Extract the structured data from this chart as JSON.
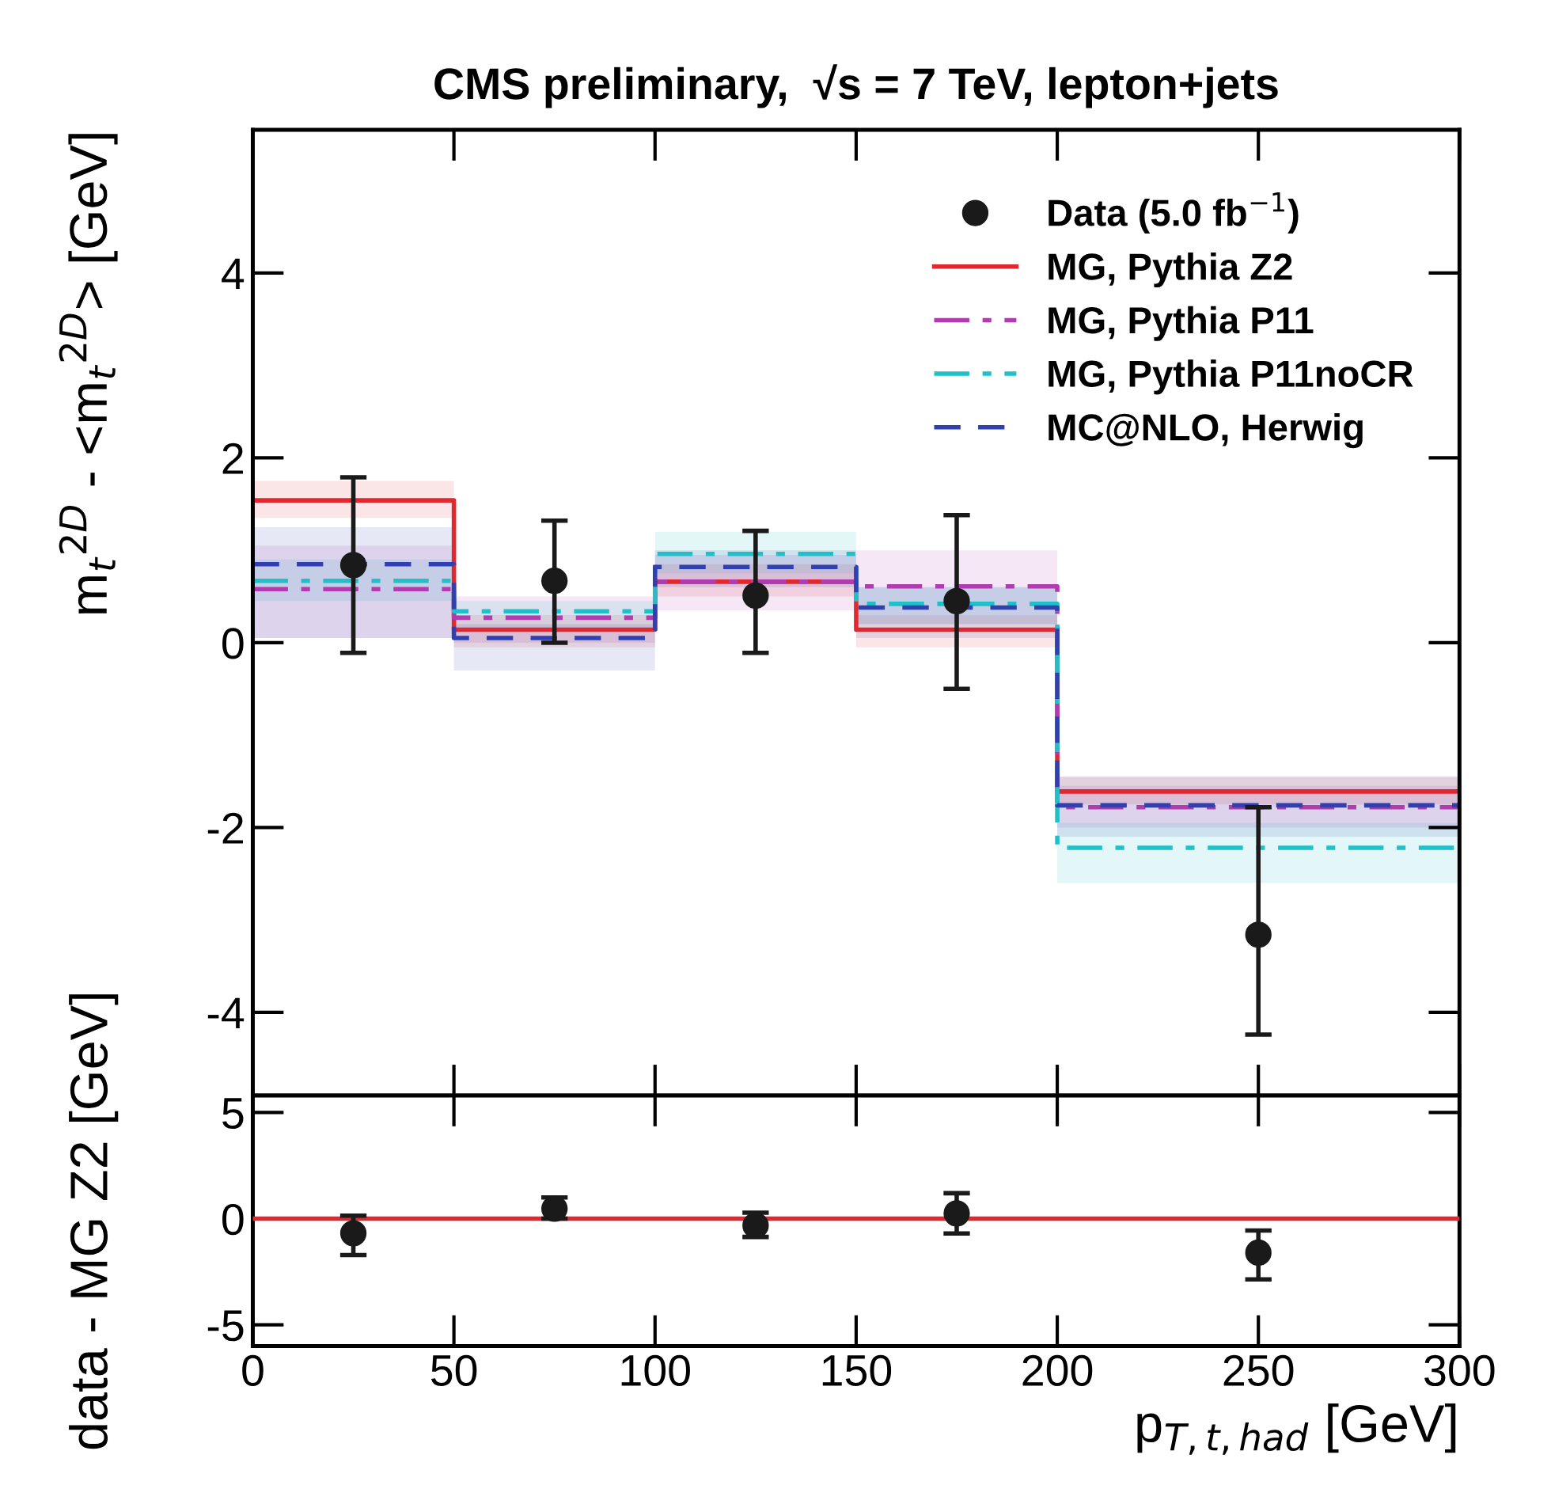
{
  "chart_data": [
    {
      "type": "step",
      "title": "CMS preliminary,  √s = 7 TeV, lepton+jets",
      "ylabel": "m$_{t}$$^{2D}$ - <m$_{t}$$^{2D}$> [GeV]",
      "x": [
        0,
        50,
        100,
        150,
        200,
        300
      ],
      "series": [
        {
          "name": "Data (5.0 fb$^{−1}$)",
          "type": "scatter",
          "color": "#1a1a1a",
          "marker": "circle",
          "x": [
            25,
            75,
            125,
            175,
            250
          ],
          "values": [
            0.84,
            0.67,
            0.51,
            0.45,
            -3.16
          ],
          "errors": [
            [
              -0.11,
              1.79
            ],
            [
              0.0,
              1.32
            ],
            [
              -0.11,
              1.21
            ],
            [
              -0.5,
              1.38
            ],
            [
              -4.24,
              -1.78
            ]
          ]
        },
        {
          "name": "MG, Pythia Z2",
          "color": "#e0282e",
          "line_style": "solid",
          "values": [
            1.54,
            0.14,
            0.66,
            0.14,
            -1.61,
            -1.61
          ],
          "upper": [
            1.75,
            0.3,
            0.85,
            0.3,
            -1.45,
            -1.45
          ],
          "lower": [
            1.35,
            -0.05,
            0.5,
            -0.05,
            -1.75,
            -1.75
          ]
        },
        {
          "name": "MG, Pythia P11",
          "color": "#b03cb0",
          "line_style": "dashdot",
          "values": [
            0.58,
            0.27,
            0.66,
            0.61,
            -1.78,
            -1.78
          ],
          "upper": [
            1.05,
            0.5,
            0.95,
            1.0,
            -1.55,
            -1.55
          ],
          "lower": [
            0.05,
            0.0,
            0.35,
            0.2,
            -2.0,
            -2.0
          ]
        },
        {
          "name": "MG, Pythia P11noCR",
          "color": "#20c0c8",
          "line_style": "dashdot",
          "values": [
            0.67,
            0.34,
            0.96,
            0.42,
            -2.22,
            -2.22
          ],
          "upper": [
            0.9,
            0.45,
            1.2,
            0.6,
            -1.95,
            -1.95
          ],
          "lower": [
            0.45,
            0.15,
            0.75,
            0.2,
            -2.6,
            -2.6
          ]
        },
        {
          "name": "MC@NLO, Herwig",
          "color": "#3040b0",
          "line_style": "dashed",
          "values": [
            0.85,
            0.05,
            0.82,
            0.38,
            -1.76,
            -1.76
          ],
          "upper": [
            1.25,
            0.2,
            1.0,
            0.6,
            -1.45,
            -1.45
          ],
          "lower": [
            0.05,
            -0.3,
            0.6,
            0.05,
            -2.1,
            -2.1
          ]
        }
      ],
      "xlim": [
        0,
        300
      ],
      "xticks": [
        0,
        50,
        100,
        150,
        200,
        250,
        300
      ],
      "ylim": [
        -4.9,
        5.55
      ],
      "yticks": [
        -4,
        -2,
        0,
        2,
        4
      ],
      "tick_labels": "y",
      "legend": "top right",
      "grid": false
    },
    {
      "type": "scatter",
      "xlabel": "p$_{T,t,had}$ [GeV]",
      "ylabel": "data - MG Z2 [GeV]",
      "x": [
        25,
        75,
        125,
        175,
        250
      ],
      "series": [
        {
          "color": "#1a1a1a",
          "marker": "circle",
          "values": [
            -0.69,
            0.47,
            -0.32,
            0.25,
            -1.6
          ],
          "errors": [
            [
              -1.71,
              0.14
            ],
            [
              0.0,
              1.0
            ],
            [
              -0.86,
              0.28
            ],
            [
              -0.7,
              1.2
            ],
            [
              -2.86,
              -0.56
            ]
          ]
        }
      ],
      "ref_lines": [
        {
          "axis": "y",
          "value": 0,
          "color": "#e0282e",
          "line_style": "solid"
        }
      ],
      "xlim": [
        0,
        300
      ],
      "xticks": [
        0,
        50,
        100,
        150,
        200,
        250,
        300
      ],
      "ylim": [
        -6,
        5.8
      ],
      "yticks": [
        -5,
        0,
        5
      ],
      "legend": false,
      "grid": false
    }
  ]
}
